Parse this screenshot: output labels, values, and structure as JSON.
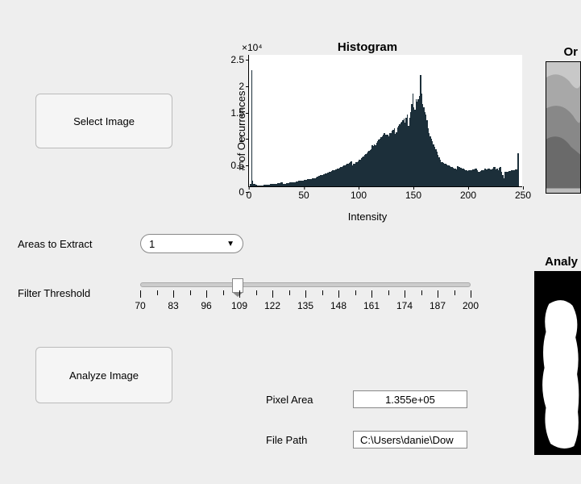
{
  "buttons": {
    "select_image": "Select Image",
    "analyze_image": "Analyze Image"
  },
  "areas_to_extract": {
    "label": "Areas to Extract",
    "value": "1"
  },
  "filter_threshold": {
    "label": "Filter Threshold",
    "min": 70,
    "max": 200,
    "step_major": 13,
    "value": 108,
    "track_color": "#cccccc",
    "thumb_color": "#ffffff"
  },
  "fields": {
    "pixel_area": {
      "label": "Pixel Area",
      "value": "1.355e+05"
    },
    "file_path": {
      "label": "File Path",
      "value": "C:\\Users\\danie\\Dow"
    }
  },
  "right_panels": {
    "original_title": "Or",
    "analyzed_title": "Analy"
  },
  "histogram": {
    "type": "bar",
    "title": "Histogram",
    "xlabel": "Intensity",
    "ylabel": "# of Occurrences",
    "exponent_label": "×10⁴",
    "title_fontsize": 15,
    "label_fontsize": 13,
    "tick_fontsize": 12,
    "background_color": "#ffffff",
    "panel_color": "#eeeeee",
    "bar_color": "#1c2f3a",
    "axis_color": "#000000",
    "xlim": [
      0,
      250
    ],
    "ylim": [
      0,
      2.5
    ],
    "xtick_step": 50,
    "ytick_step": 0.5,
    "bar_width": 1,
    "values_e4": [
      0.0,
      0.05,
      2.2,
      0.1,
      0.05,
      0.04,
      0.03,
      0.02,
      0.02,
      0.02,
      0.02,
      0.02,
      0.02,
      0.03,
      0.03,
      0.03,
      0.03,
      0.03,
      0.03,
      0.04,
      0.04,
      0.04,
      0.04,
      0.05,
      0.05,
      0.05,
      0.06,
      0.06,
      0.06,
      0.07,
      0.07,
      0.05,
      0.05,
      0.05,
      0.06,
      0.06,
      0.06,
      0.07,
      0.07,
      0.07,
      0.08,
      0.08,
      0.08,
      0.09,
      0.09,
      0.1,
      0.1,
      0.1,
      0.11,
      0.11,
      0.12,
      0.12,
      0.12,
      0.13,
      0.13,
      0.14,
      0.14,
      0.15,
      0.15,
      0.16,
      0.16,
      0.17,
      0.19,
      0.2,
      0.2,
      0.21,
      0.22,
      0.22,
      0.23,
      0.24,
      0.25,
      0.26,
      0.26,
      0.27,
      0.28,
      0.29,
      0.3,
      0.3,
      0.31,
      0.32,
      0.33,
      0.34,
      0.35,
      0.36,
      0.37,
      0.38,
      0.39,
      0.4,
      0.41,
      0.42,
      0.43,
      0.44,
      0.45,
      0.47,
      0.4,
      0.42,
      0.43,
      0.45,
      0.46,
      0.48,
      0.5,
      0.51,
      0.53,
      0.55,
      0.57,
      0.59,
      0.61,
      0.63,
      0.65,
      0.67,
      0.69,
      0.7,
      0.78,
      0.76,
      0.79,
      0.78,
      0.83,
      0.85,
      0.88,
      0.9,
      0.93,
      0.95,
      0.97,
      1.0,
      0.97,
      0.98,
      0.97,
      0.95,
      1.0,
      1.0,
      1.05,
      1.07,
      1.1,
      0.99,
      1.02,
      1.12,
      1.15,
      1.18,
      1.2,
      1.22,
      1.25,
      1.28,
      1.2,
      1.3,
      1.35,
      1.15,
      1.3,
      1.4,
      1.55,
      1.75,
      1.5,
      1.45,
      1.65,
      1.6,
      1.65,
      1.7,
      2.1,
      1.75,
      1.55,
      1.5,
      1.4,
      1.35,
      1.25,
      1.1,
      1.0,
      0.95,
      0.9,
      0.85,
      0.8,
      0.75,
      0.7,
      0.65,
      0.6,
      0.55,
      0.5,
      0.45,
      0.45,
      0.44,
      0.43,
      0.42,
      0.41,
      0.4,
      0.39,
      0.38,
      0.37,
      0.36,
      0.35,
      0.34,
      0.33,
      0.32,
      0.38,
      0.37,
      0.36,
      0.35,
      0.34,
      0.33,
      0.32,
      0.31,
      0.3,
      0.29,
      0.3,
      0.3,
      0.31,
      0.31,
      0.32,
      0.32,
      0.33,
      0.33,
      0.3,
      0.28,
      0.28,
      0.29,
      0.3,
      0.3,
      0.31,
      0.33,
      0.32,
      0.32,
      0.33,
      0.33,
      0.32,
      0.32,
      0.33,
      0.36,
      0.37,
      0.32,
      0.34,
      0.3,
      0.35,
      0.36,
      0.28,
      0.22,
      0.15,
      0.27,
      0.27,
      0.28,
      0.28,
      0.29,
      0.29,
      0.3,
      0.3,
      0.31,
      0.31,
      0.32,
      0.32,
      0.62,
      0.0,
      0.0,
      0.0,
      0.0
    ]
  }
}
